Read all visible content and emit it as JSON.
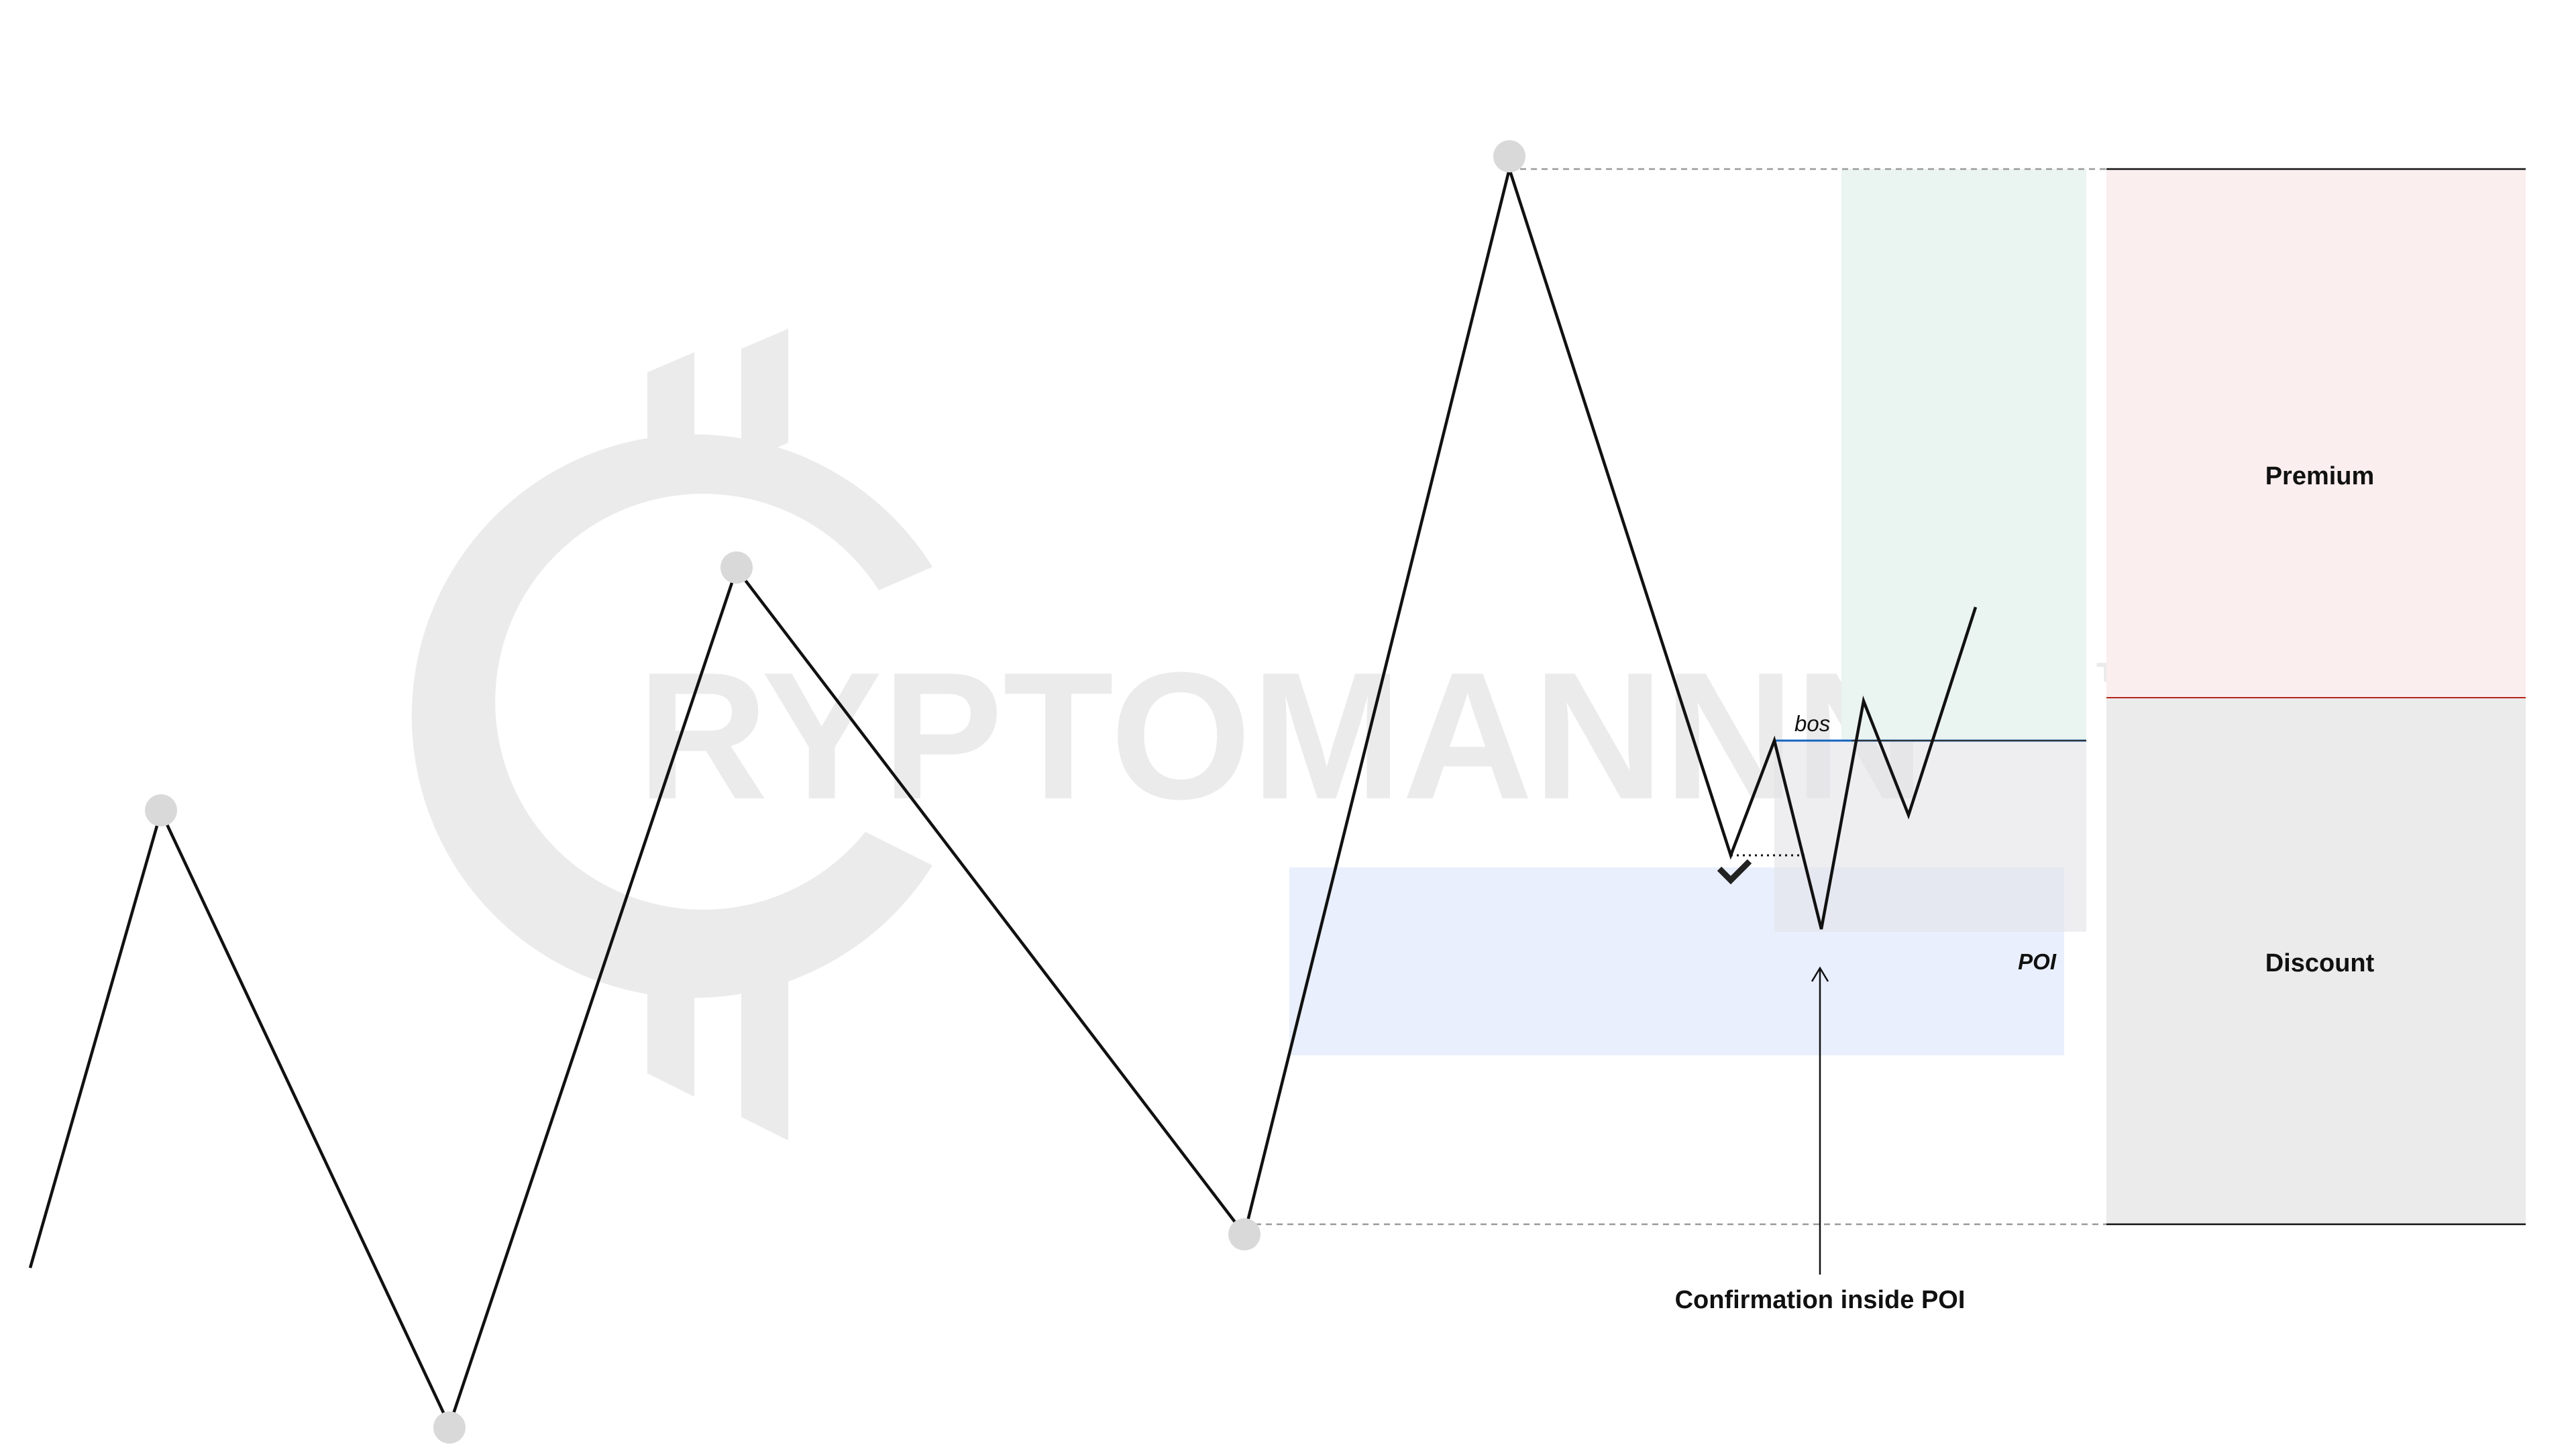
{
  "watermark": {
    "text": "RYPTOMANNN",
    "tm": "™"
  },
  "zones": {
    "premium_label": "Premium",
    "discount_label": "Discount"
  },
  "annotations": {
    "bos_label": "bos",
    "poi_label": "POI",
    "confirmation_label": "Confirmation inside POI"
  },
  "colors": {
    "price_line": "#111111",
    "swing_marker": "#d9d9d9",
    "premium_fill": "#fbeeee",
    "discount_fill": "#ebebeb",
    "premium_boundary": "#b3261e",
    "poi_fill": "#e8eefc",
    "target_fill": "#eaf4f1",
    "bos_line": "#1565c0",
    "watermark": "#ebebeb"
  }
}
